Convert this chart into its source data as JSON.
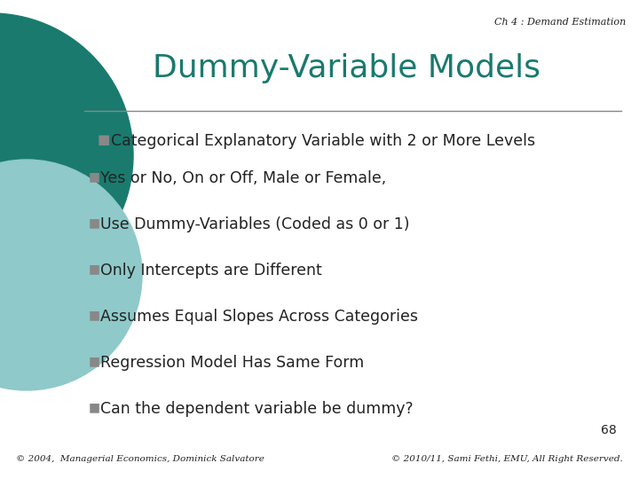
{
  "bg_color": "#ffffff",
  "header_text": "Ch 4 : Demand Estimation",
  "title": "Dummy-Variable Models",
  "title_color": "#1a7a6e",
  "bullet1_marker": "■",
  "bullet1_text": "Categorical Explanatory Variable with 2 or More Levels",
  "sub_bullets": [
    "Yes or No, On or Off, Male or Female,",
    "Use Dummy-Variables (Coded as 0 or 1)",
    "Only Intercepts are Different",
    "Assumes Equal Slopes Across Categories",
    "Regression Model Has Same Form",
    "Can the dependent variable be dummy?"
  ],
  "footer_left": "© 2004,  Managerial Economics, Dominick Salvatore",
  "footer_right": "© 2010/11, Sami Fethi, EMU, All Right Reserved.",
  "page_number": "68",
  "line_color": "#888888",
  "text_color": "#222222",
  "marker_color": "#888888",
  "circle_color1": "#1a7a6e",
  "circle_color2": "#8fc9c9"
}
